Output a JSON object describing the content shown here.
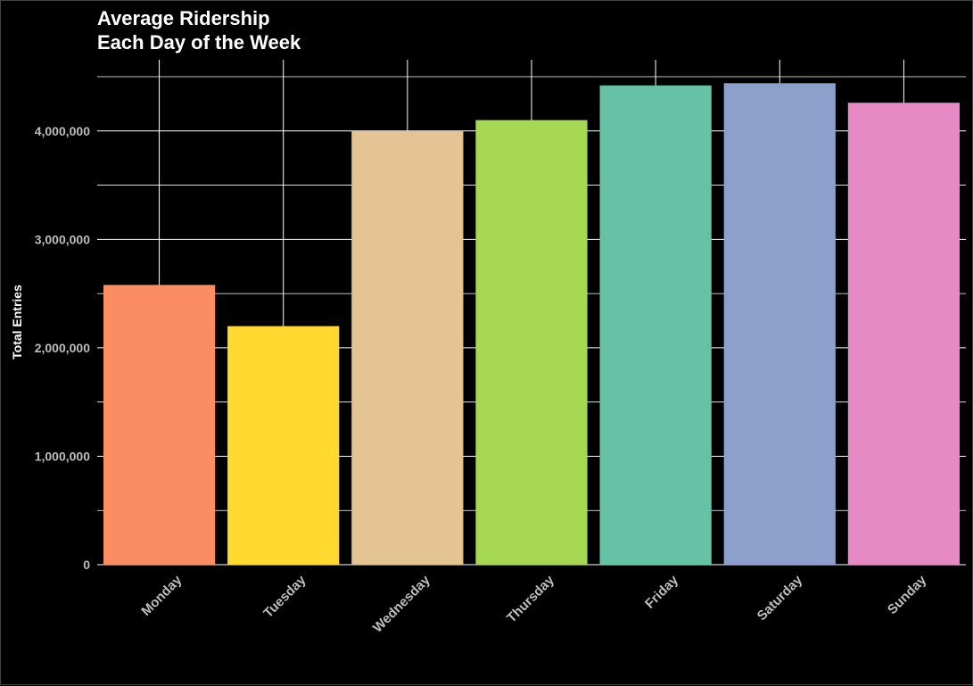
{
  "chart_data": {
    "type": "bar",
    "title": [
      "Average Ridership",
      "Each Day of the Week"
    ],
    "xlabel": "",
    "ylabel": "Total Entries",
    "categories": [
      "Monday",
      "Tuesday",
      "Wednesday",
      "Thursday",
      "Friday",
      "Saturday",
      "Sunday"
    ],
    "values": [
      2580000,
      2200000,
      4000000,
      4100000,
      4420000,
      4440000,
      4260000
    ],
    "colors": [
      "#FC8D62",
      "#FFD92F",
      "#E5C494",
      "#A6D854",
      "#66C2A5",
      "#8DA0CB",
      "#E78AC3"
    ],
    "ylim": [
      0,
      4500000
    ],
    "yticks": [
      0,
      1000000,
      2000000,
      3000000,
      4000000
    ],
    "ytick_labels": [
      "0",
      "1,000,000",
      "2,000,000",
      "3,000,000",
      "4,000,000"
    ],
    "background": "#000000",
    "grid": true,
    "legend": "none"
  }
}
